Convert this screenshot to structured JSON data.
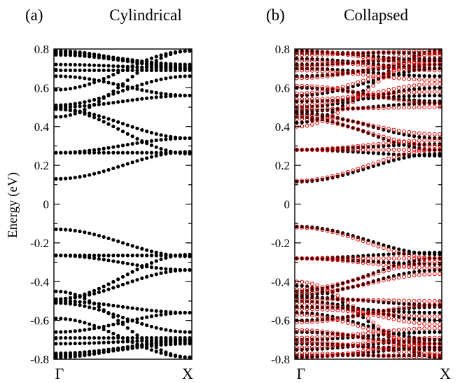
{
  "chart_data": [
    {
      "type": "scatter",
      "panel_label": "(a)",
      "title": "Cylindrical",
      "ylabel": "Energy (eV)",
      "ylim": [
        -0.8,
        0.8
      ],
      "yticks": [
        "-0.8",
        "-0.6",
        "-0.4",
        "-0.2",
        "0",
        "0.2",
        "0.4",
        "0.6",
        "0.8"
      ],
      "xticklabels": [
        "Γ",
        "X"
      ],
      "marker": "filled circle",
      "series": [
        {
          "color": "#000000",
          "bands": [
            {
              "start": 0.13,
              "end": 0.27
            },
            {
              "start": 0.265,
              "end": 0.34
            },
            {
              "start": 0.265,
              "end": 0.265
            },
            {
              "start": 0.49,
              "end": 0.26
            },
            {
              "start": 0.49,
              "end": 0.34
            },
            {
              "start": 0.5,
              "end": 0.56
            },
            {
              "start": 0.51,
              "end": 0.66
            },
            {
              "start": 0.66,
              "end": 0.56
            },
            {
              "start": 0.69,
              "end": 0.69
            },
            {
              "start": 0.72,
              "end": 0.7
            },
            {
              "start": 0.77,
              "end": 0.71
            },
            {
              "start": 0.78,
              "end": 0.72
            },
            {
              "start": 0.79,
              "end": 0.7
            },
            {
              "start": 0.59,
              "end": 0.79
            },
            {
              "start": 0.45,
              "end": 0.79
            }
          ],
          "mirror_about_zero": true
        }
      ]
    },
    {
      "type": "scatter",
      "panel_label": "(b)",
      "title": "Collapsed",
      "ylim": [
        -0.8,
        0.8
      ],
      "yticks": [
        "-0.8",
        "-0.6",
        "-0.4",
        "-0.2",
        "0",
        "0.2",
        "0.4",
        "0.6",
        "0.8"
      ],
      "xticklabels": [
        "Γ",
        "X"
      ],
      "series": [
        {
          "marker": "filled circle",
          "color": "#000000",
          "bands": [
            {
              "start": 0.115,
              "end": 0.26
            },
            {
              "start": 0.28,
              "end": 0.31
            },
            {
              "start": 0.28,
              "end": 0.25
            },
            {
              "start": 0.45,
              "end": 0.28
            },
            {
              "start": 0.47,
              "end": 0.34
            },
            {
              "start": 0.48,
              "end": 0.52
            },
            {
              "start": 0.5,
              "end": 0.6
            },
            {
              "start": 0.53,
              "end": 0.56
            },
            {
              "start": 0.56,
              "end": 0.7
            },
            {
              "start": 0.6,
              "end": 0.53
            },
            {
              "start": 0.66,
              "end": 0.72
            },
            {
              "start": 0.7,
              "end": 0.66
            },
            {
              "start": 0.72,
              "end": 0.75
            },
            {
              "start": 0.75,
              "end": 0.7
            },
            {
              "start": 0.78,
              "end": 0.78
            },
            {
              "start": 0.79,
              "end": 0.74
            },
            {
              "start": 0.42,
              "end": 0.79
            }
          ],
          "mirror_about_zero": true
        },
        {
          "marker": "open circle",
          "color": "#e00000",
          "bands": [
            {
              "start": 0.12,
              "end": 0.28
            },
            {
              "start": 0.28,
              "end": 0.33
            },
            {
              "start": 0.28,
              "end": 0.28
            },
            {
              "start": 0.44,
              "end": 0.3
            },
            {
              "start": 0.46,
              "end": 0.36
            },
            {
              "start": 0.49,
              "end": 0.5
            },
            {
              "start": 0.51,
              "end": 0.62
            },
            {
              "start": 0.54,
              "end": 0.58
            },
            {
              "start": 0.57,
              "end": 0.72
            },
            {
              "start": 0.61,
              "end": 0.52
            },
            {
              "start": 0.65,
              "end": 0.74
            },
            {
              "start": 0.69,
              "end": 0.64
            },
            {
              "start": 0.71,
              "end": 0.77
            },
            {
              "start": 0.74,
              "end": 0.69
            },
            {
              "start": 0.77,
              "end": 0.79
            },
            {
              "start": 0.79,
              "end": 0.72
            },
            {
              "start": 0.4,
              "end": 0.78
            }
          ],
          "mirror_about_zero": true
        }
      ]
    }
  ]
}
